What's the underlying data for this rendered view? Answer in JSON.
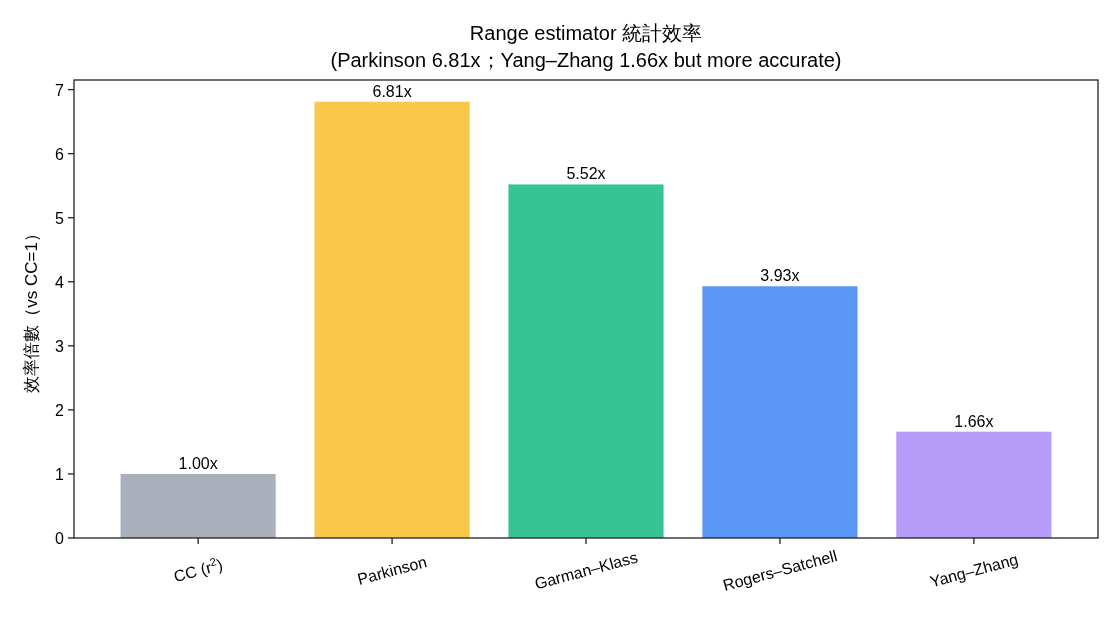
{
  "chart_data": {
    "type": "bar",
    "title": "Range estimator 統計效率",
    "subtitle": "(Parkinson 6.81x；Yang–Zhang 1.66x but more accurate)",
    "ylabel": "效率倍數（vs CC=1）",
    "categories": [
      "CC (r$^{2}$)",
      "Parkinson",
      "Garman–Klass",
      "Rogers–Satchell",
      "Yang–Zhang"
    ],
    "values": [
      1.0,
      6.81,
      5.52,
      3.93,
      1.66
    ],
    "colors": [
      "#aab0bb",
      "#f9c74a",
      "#36c495",
      "#5a96f5",
      "#b59cf8"
    ],
    "value_labels": [
      "1.00x",
      "6.81x",
      "5.52x",
      "3.93x",
      "1.66x"
    ],
    "ylim": [
      0,
      7.15
    ],
    "yticks": [
      0,
      1,
      2,
      3,
      4,
      5,
      6,
      7
    ],
    "grid": false
  }
}
